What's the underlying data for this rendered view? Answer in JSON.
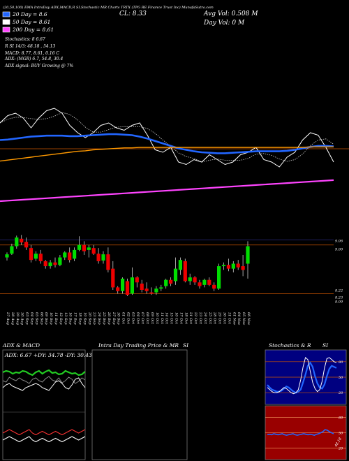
{
  "header": {
    "top_line": "(20,50,100) EMA IntraDay ADX,MACD,R SI,Stochastic MR Charts TRTX (TPG RE Finance Trust Inc) MunafaSutra.com",
    "cl": "CL: 8.33",
    "avg_vol": "Avg Vol: 0.508 M",
    "day_vol": "Day Vol: 0 M",
    "legend": [
      {
        "label": "20 Day = 8.6",
        "color": "#2266ff"
      },
      {
        "label": "50 Day = 8.61",
        "color": "#ffffff"
      },
      {
        "label": "200 Day = 8.61",
        "color": "#ff44ff"
      }
    ],
    "lines": [
      "Stochastics: 8                6.67",
      "R                  SI 14/3: 48.18 ,  54.13",
      "MACD: 8.77,  8.61, 0.16  C",
      "ADX:                       (MGR) 6.7,  54.8,  30.4",
      "ADX  signal:                      BUY Growing @ 7%"
    ]
  },
  "chart_data": [
    {
      "type": "line",
      "name": "ema-panel",
      "series": [
        {
          "name": "price",
          "color": "#ffffff",
          "values": [
            9.1,
            9.25,
            9.3,
            9.2,
            9.0,
            9.2,
            9.35,
            9.4,
            9.3,
            9.05,
            8.9,
            8.8,
            8.9,
            9.05,
            9.1,
            9.0,
            8.95,
            9.05,
            9.1,
            8.85,
            8.55,
            8.5,
            8.6,
            8.3,
            8.25,
            8.35,
            8.3,
            8.45,
            8.35,
            8.25,
            8.3,
            8.45,
            8.5,
            8.6,
            8.35,
            8.3,
            8.2,
            8.4,
            8.5,
            8.75,
            8.9,
            8.85,
            8.6,
            8.3
          ]
        },
        {
          "name": "ema-blue",
          "color": "#2266ff",
          "values": [
            8.75,
            8.76,
            8.78,
            8.8,
            8.82,
            8.83,
            8.84,
            8.84,
            8.84,
            8.83,
            8.83,
            8.84,
            8.85,
            8.86,
            8.87,
            8.87,
            8.86,
            8.85,
            8.82,
            8.78,
            8.73,
            8.68,
            8.63,
            8.58,
            8.55,
            8.52,
            8.5,
            8.49,
            8.48,
            8.48,
            8.49,
            8.5,
            8.51,
            8.52,
            8.52,
            8.52,
            8.52,
            8.53,
            8.55,
            8.58,
            8.61,
            8.63,
            8.63,
            8.62
          ]
        },
        {
          "name": "ema-orange",
          "color": "#ff9900",
          "values": [
            8.32,
            8.34,
            8.36,
            8.38,
            8.4,
            8.42,
            8.44,
            8.46,
            8.48,
            8.5,
            8.52,
            8.53,
            8.55,
            8.56,
            8.57,
            8.58,
            8.59,
            8.59,
            8.6,
            8.6,
            8.6,
            8.6,
            8.6,
            8.6,
            8.6,
            8.6,
            8.6,
            8.6,
            8.6,
            8.6,
            8.6,
            8.6,
            8.6,
            8.6,
            8.6,
            8.6,
            8.6,
            8.6,
            8.6,
            8.6,
            8.61,
            8.61,
            8.61,
            8.61
          ]
        },
        {
          "name": "ema-magenta",
          "color": "#ff44ff",
          "values": [
            7.5,
            7.51,
            7.52,
            7.53,
            7.54,
            7.55,
            7.56,
            7.57,
            7.58,
            7.59,
            7.6,
            7.61,
            7.62,
            7.63,
            7.64,
            7.65,
            7.66,
            7.67,
            7.68,
            7.69,
            7.7,
            7.71,
            7.72,
            7.73,
            7.74,
            7.75,
            7.76,
            7.77,
            7.78,
            7.79,
            7.8,
            7.81,
            7.82,
            7.83,
            7.84,
            7.85,
            7.86,
            7.87,
            7.88,
            7.89,
            7.9,
            7.91,
            7.92,
            7.93
          ]
        }
      ]
    },
    {
      "type": "candlestick",
      "name": "price-panel",
      "ylim": [
        8.0,
        9.4
      ],
      "price_labels": [
        "9.06",
        "9.00",
        "8.22",
        "8.23",
        "8.09"
      ],
      "x": [
        "27 Aug",
        "28 Aug",
        "29 Aug",
        "30 Aug",
        "03 Sep",
        "04 Sep",
        "05 Sep",
        "06 Sep",
        "09 Sep",
        "10 Sep",
        "11 Sep",
        "12 Sep",
        "13 Sep",
        "16 Sep",
        "17 Sep",
        "18 Sep",
        "19 Sep",
        "20 Sep",
        "23 Sep",
        "24 Sep",
        "25 Sep",
        "26 Sep",
        "27 Sep",
        "30 Sep",
        "01 Oct",
        "02 Oct",
        "03 Oct",
        "04 Oct",
        "07 Oct",
        "08 Oct",
        "09 Oct",
        "10 Oct",
        "11 Oct",
        "14 Oct",
        "15 Oct",
        "16 Oct",
        "17 Oct",
        "18 Oct",
        "21 Oct",
        "22 Oct",
        "23 Oct",
        "24 Oct",
        "25 Oct",
        "28 Oct",
        "29 Oct",
        "30 Oct",
        "31 Oct",
        "01 Nov",
        "04 Nov",
        "05 Nov",
        "06 Nov"
      ],
      "ohlc": [
        [
          8.8,
          8.88,
          8.75,
          8.85
        ],
        [
          8.86,
          9.02,
          8.84,
          8.98
        ],
        [
          8.98,
          9.15,
          8.94,
          9.12
        ],
        [
          9.1,
          9.16,
          9.0,
          9.04
        ],
        [
          9.05,
          9.12,
          8.92,
          8.96
        ],
        [
          8.95,
          9.0,
          8.72,
          8.76
        ],
        [
          8.78,
          8.9,
          8.74,
          8.86
        ],
        [
          8.86,
          8.92,
          8.7,
          8.74
        ],
        [
          8.74,
          8.76,
          8.62,
          8.66
        ],
        [
          8.66,
          8.76,
          8.62,
          8.72
        ],
        [
          8.72,
          8.8,
          8.64,
          8.68
        ],
        [
          8.68,
          8.84,
          8.66,
          8.8
        ],
        [
          8.8,
          8.9,
          8.76,
          8.88
        ],
        [
          8.88,
          8.96,
          8.72,
          8.76
        ],
        [
          8.78,
          8.96,
          8.74,
          8.92
        ],
        [
          8.92,
          9.14,
          8.9,
          9.0
        ],
        [
          9.0,
          9.06,
          8.84,
          8.9
        ],
        [
          8.92,
          9.0,
          8.8,
          8.96
        ],
        [
          8.95,
          9.0,
          8.84,
          8.86
        ],
        [
          8.86,
          8.95,
          8.7,
          8.74
        ],
        [
          8.75,
          8.9,
          8.7,
          8.85
        ],
        [
          8.85,
          8.96,
          8.56,
          8.6
        ],
        [
          8.62,
          8.74,
          8.28,
          8.32
        ],
        [
          8.32,
          8.34,
          8.22,
          8.26
        ],
        [
          8.26,
          8.48,
          8.22,
          8.46
        ],
        [
          8.42,
          8.46,
          8.18,
          8.2
        ],
        [
          8.22,
          8.64,
          8.2,
          8.48
        ],
        [
          8.48,
          8.5,
          8.32,
          8.4
        ],
        [
          8.38,
          8.44,
          8.24,
          8.28
        ],
        [
          8.3,
          8.4,
          8.22,
          8.26
        ],
        [
          8.24,
          8.32,
          8.2,
          8.22
        ],
        [
          8.24,
          8.34,
          8.2,
          8.3
        ],
        [
          8.3,
          8.36,
          8.26,
          8.32
        ],
        [
          8.34,
          8.46,
          8.3,
          8.44
        ],
        [
          8.44,
          8.48,
          8.34,
          8.38
        ],
        [
          8.42,
          8.8,
          8.36,
          8.62
        ],
        [
          8.6,
          8.8,
          8.52,
          8.76
        ],
        [
          8.74,
          8.78,
          8.4,
          8.42
        ],
        [
          8.42,
          8.54,
          8.36,
          8.48
        ],
        [
          8.48,
          8.5,
          8.36,
          8.4
        ],
        [
          8.4,
          8.44,
          8.3,
          8.34
        ],
        [
          8.36,
          8.46,
          8.32,
          8.44
        ],
        [
          8.44,
          8.48,
          8.34,
          8.36
        ],
        [
          8.36,
          8.4,
          8.26,
          8.3
        ],
        [
          8.3,
          8.7,
          8.28,
          8.66
        ],
        [
          8.66,
          8.72,
          8.6,
          8.68
        ],
        [
          8.68,
          8.78,
          8.58,
          8.62
        ],
        [
          8.62,
          8.74,
          8.56,
          8.7
        ],
        [
          8.7,
          8.76,
          8.6,
          8.64
        ],
        [
          8.66,
          8.84,
          8.5,
          8.6
        ],
        [
          8.7,
          9.06,
          8.46,
          8.98
        ]
      ]
    },
    {
      "type": "line",
      "name": "adx-macd",
      "title": "ADX  & MACD",
      "readout": "ADX: 6.67  +DY: 34.78  -DY: 30.43",
      "series": [
        {
          "name": "adx-green",
          "color": "#22cc22",
          "values": [
            52,
            54,
            53,
            50,
            52,
            51,
            54,
            53,
            50,
            48,
            52,
            54,
            50,
            53,
            55,
            51,
            52,
            49,
            50,
            54,
            52,
            50,
            51,
            48,
            49,
            53
          ]
        },
        {
          "name": "di-gray",
          "color": "#888888",
          "values": [
            40,
            38,
            45,
            42,
            40,
            44,
            41,
            39,
            36,
            42,
            44,
            40,
            38,
            43,
            46,
            41,
            39,
            44,
            37,
            40,
            45,
            42,
            36,
            39,
            44,
            41
          ]
        },
        {
          "name": "adx-white",
          "color": "#ffffff",
          "values": [
            30,
            34,
            36,
            32,
            30,
            28,
            26,
            30,
            32,
            34,
            36,
            34,
            30,
            28,
            26,
            32,
            38,
            40,
            36,
            30,
            28,
            34,
            42,
            44,
            36,
            30
          ]
        },
        {
          "name": "macd-red",
          "color": "#ff3333",
          "values": [
            12,
            12.5,
            13,
            12.5,
            12,
            11.5,
            12,
            12.5,
            13,
            12,
            11.5,
            12,
            12.5,
            12,
            11.5,
            12,
            12.5,
            12,
            11.5,
            12,
            12.5,
            13,
            12.5,
            12,
            12.5,
            13
          ]
        },
        {
          "name": "macd-white",
          "color": "#ffffff",
          "values": [
            10,
            10.5,
            11,
            10.5,
            10,
            9.5,
            10,
            10.5,
            11,
            10,
            9.5,
            10,
            10.5,
            10,
            9.5,
            10,
            10.5,
            10,
            9.5,
            10,
            10.5,
            11,
            10.5,
            10,
            10.5,
            11
          ]
        }
      ]
    },
    {
      "type": "line",
      "name": "intraday",
      "title": "Intra Day Trading Price  & MR",
      "title_right": "SI"
    },
    {
      "type": "line",
      "name": "stochastics",
      "title": "Stochastics & R",
      "title_right": "SI",
      "ticks": [
        "80",
        "50",
        "20"
      ],
      "series": [
        {
          "name": "stoch-blue",
          "color": "#2266ff",
          "values": [
            35,
            30,
            26,
            24,
            22,
            22,
            24,
            28,
            32,
            30,
            26,
            22,
            20,
            22,
            26,
            40,
            55,
            72,
            78,
            70,
            52,
            38,
            30,
            28,
            36,
            52,
            66,
            72,
            70,
            68
          ]
        },
        {
          "name": "stoch-white",
          "color": "#ffffff",
          "values": [
            30,
            26,
            22,
            20,
            20,
            22,
            26,
            30,
            28,
            24,
            20,
            18,
            20,
            26,
            45,
            70,
            88,
            84,
            62,
            40,
            28,
            22,
            26,
            42,
            68,
            86,
            88,
            84,
            80,
            78
          ]
        }
      ]
    },
    {
      "type": "line",
      "name": "rsi",
      "ticks": [
        "80",
        "50",
        "20"
      ],
      "rsi_label": "48.18",
      "series": [
        {
          "name": "rsi-blue",
          "color": "#2266ff",
          "values": [
            46,
            47,
            46,
            48,
            47,
            46,
            47,
            48,
            46,
            45,
            46,
            47,
            48,
            46,
            45,
            46,
            47,
            48,
            47,
            46,
            47,
            46,
            45,
            47,
            48,
            50,
            52,
            56,
            55,
            52,
            50,
            48
          ]
        }
      ]
    }
  ]
}
